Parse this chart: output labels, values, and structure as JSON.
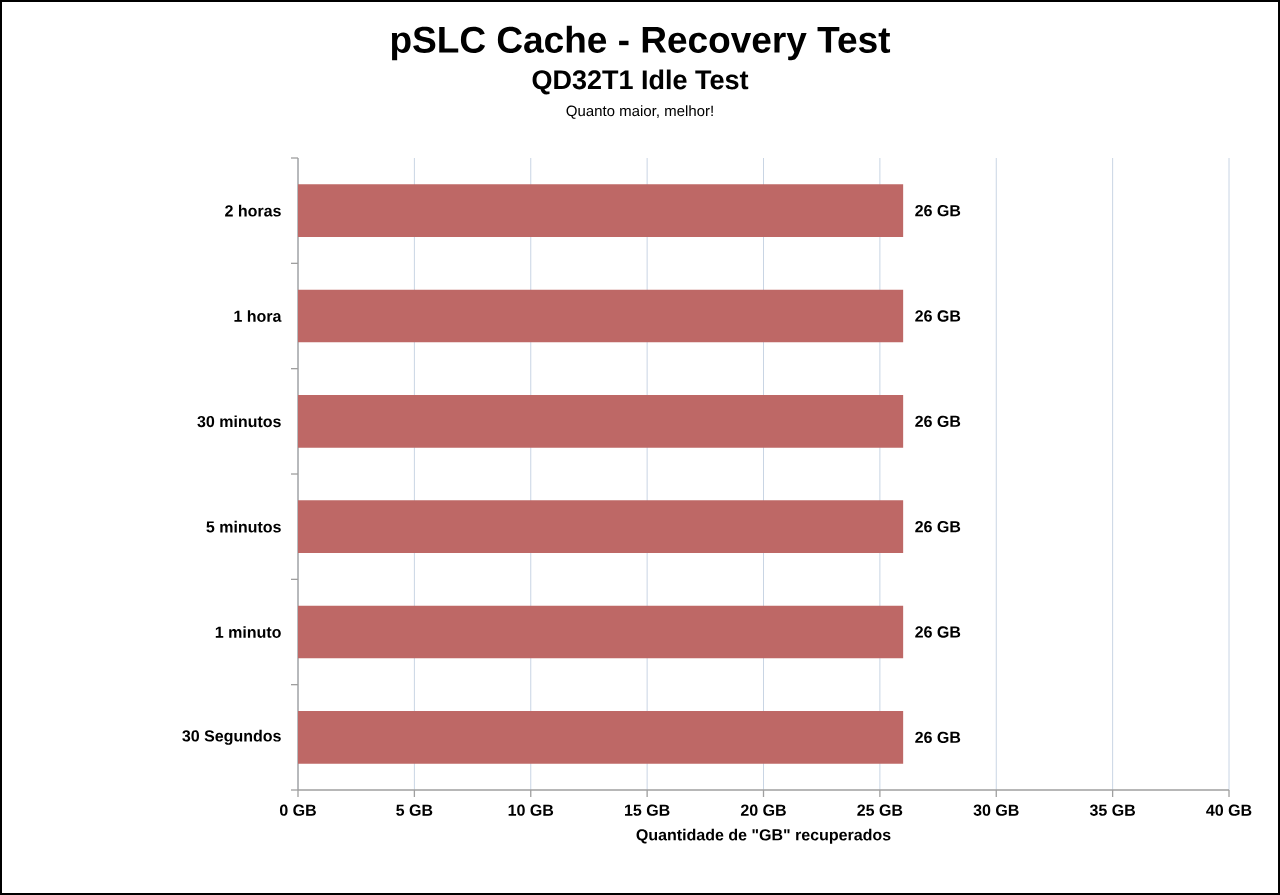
{
  "chart_data": {
    "type": "bar",
    "orientation": "horizontal",
    "title": "pSLC Cache - Recovery Test",
    "subtitle": "QD32T1 Idle Test",
    "annotations": [
      "Quanto maior, melhor!"
    ],
    "xlabel": "Quantidade de \"GB\" recuperados",
    "categories": [
      "2 horas",
      "1 hora",
      "30 minutos",
      "5 minutos",
      "1 minuto",
      "30 Segundos"
    ],
    "values": [
      26,
      26,
      26,
      26,
      26,
      26
    ],
    "value_labels": [
      "26 GB",
      "26 GB",
      "26 GB",
      "26 GB",
      "26 GB",
      "26 GB"
    ],
    "color": "#be6866",
    "xlim": [
      0,
      40
    ],
    "xticks": [
      {
        "value": 0,
        "label": "0 GB"
      },
      {
        "value": 5,
        "label": "5 GB"
      },
      {
        "value": 10,
        "label": "10 GB"
      },
      {
        "value": 15,
        "label": "15 GB"
      },
      {
        "value": 20,
        "label": "20 GB"
      },
      {
        "value": 25,
        "label": "25 GB"
      },
      {
        "value": 30,
        "label": "30 GB"
      },
      {
        "value": 35,
        "label": "35 GB"
      },
      {
        "value": 40,
        "label": "40 GB"
      }
    ],
    "grid": "x"
  }
}
